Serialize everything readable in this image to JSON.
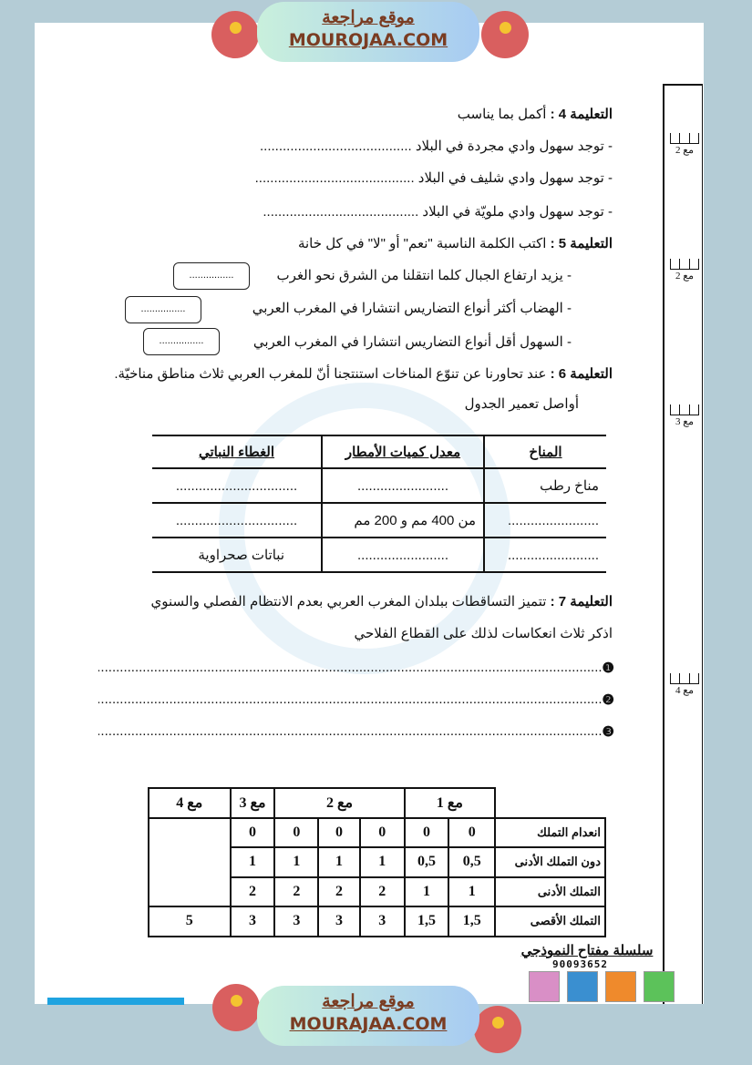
{
  "header_banner": {
    "arabic": "موقع مراجعة",
    "latin": "MOUROJAA.COM",
    "logo_text": "موقع مراجعة mourajaa.com"
  },
  "footer_banner": {
    "arabic": "موقع مراجعة",
    "latin": "MOURAJAA.COM"
  },
  "instruction4": {
    "title": "التعليمة 4 :",
    "text": "أكمل بما يناسب",
    "lines": [
      "- توجد سهول وادي مجردة في البلاد ........................................",
      "- توجد سهول وادي شليف في البلاد ..........................................",
      "- توجد سهول وادي ملويّة في البلاد ........................................."
    ]
  },
  "instruction5": {
    "title": "التعليمة 5 :",
    "text": "اكتب الكلمة الناسبة \"نعم\" أو \"لا\" في كل خانة",
    "lines": [
      "- يزيد ارتفاع الجبال كلما انتقلنا من الشرق نحو الغرب",
      "- الهضاب أكثر أنواع التضاريس انتشارا في المغرب العربي",
      "- السهول أقل أنواع التضاريس انتشارا في المغرب العربي"
    ],
    "box_placeholder": "................"
  },
  "instruction6": {
    "title": "التعليمة 6 :",
    "text": "عند تحاورنا عن تنوّع المناخات استنتجنا أنّ للمغرب العربي ثلاث مناطق مناخيّة.",
    "sub": "أواصل تعمير الجدول",
    "table": {
      "headers": [
        "المناخ",
        "معدل كميات الأمطار",
        "الغطاء النباتي"
      ],
      "rows": [
        [
          "مناخ رطب",
          "........................",
          "................................"
        ],
        [
          "........................",
          "من 400 مم و 200 مم",
          "................................"
        ],
        [
          "........................",
          "........................",
          "نباتات صحراوية"
        ]
      ]
    }
  },
  "instruction7": {
    "title": "التعليمة 7 :",
    "text": "تتميز التساقطات ببلدان المغرب العربي بعدم الانتظام الفصلي والسنوي",
    "sub": "اذكر ثلاث انعكاسات لذلك على القطاع الفلاحي",
    "bullets": [
      "❶",
      "❷",
      "❸"
    ],
    "answer_line": "..............................................................................................................................................."
  },
  "margin_scores": [
    "مع 2",
    "مع 2",
    "مع 3",
    "مع 4"
  ],
  "grading_table": {
    "criteria": [
      "مع 1",
      "مع 2",
      "مع 3",
      "مع 4"
    ],
    "rows": [
      {
        "label": "انعدام التملك",
        "values": [
          "0",
          "0",
          "0",
          "0",
          "0",
          "0",
          ""
        ]
      },
      {
        "label": "دون التملك الأدنى",
        "values": [
          "0,5",
          "0,5",
          "1",
          "1",
          "1",
          "1",
          ""
        ]
      },
      {
        "label": "التملك الأدنى",
        "values": [
          "1",
          "1",
          "2",
          "2",
          "2",
          "2",
          ""
        ]
      },
      {
        "label": "التملك الأقصى",
        "values": [
          "1,5",
          "1,5",
          "3",
          "3",
          "3",
          "3",
          "5"
        ]
      }
    ]
  },
  "promo": {
    "title": "سلسلة مفتاح النموذجي",
    "phone": "90093652"
  },
  "colors": {
    "frame": "#b4ccd6",
    "banner_text": "#7a3c22",
    "logo": "#d95f5f"
  }
}
